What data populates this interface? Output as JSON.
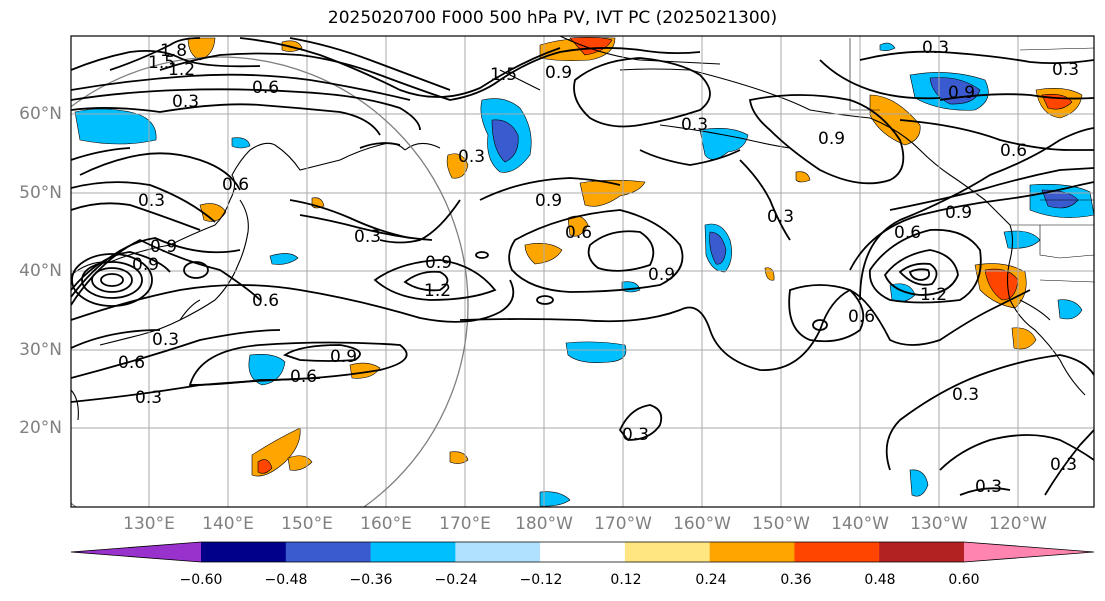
{
  "title": "2025020700 F000 500 hPa PV, IVT PC (2025021300)",
  "lat_labels": [
    "60°N",
    "50°N",
    "40°N",
    "30°N",
    "20°N"
  ],
  "lon_labels": [
    "130°E",
    "140°E",
    "150°E",
    "160°E",
    "170°E",
    "180°W",
    "170°W",
    "160°W",
    "150°W",
    "140°W",
    "130°W",
    "120°W"
  ],
  "colorbar": {
    "colors": [
      "#9932cc",
      "#00008b",
      "#3a5bd0",
      "#00bfff",
      "#b0e2ff",
      "#ffffff",
      "#ffe680",
      "#ffa500",
      "#ff4500",
      "#b22222",
      "#ff85b0"
    ],
    "ticks": [
      "−0.60",
      "−0.48",
      "−0.36",
      "−0.24",
      "−0.12",
      "0.12",
      "0.24",
      "0.36",
      "0.48",
      "0.60"
    ]
  },
  "contour_labels": [
    "1.8",
    "1.5",
    "1.2",
    "0.6",
    "0.3",
    "0.3",
    "0.6",
    "0.9",
    "0.3",
    "0.9",
    "1.2",
    "0.6",
    "0.6",
    "0.9",
    "0.6",
    "0.3",
    "0.9",
    "0.9",
    "0.3",
    "0.3",
    "0.9",
    "0.3",
    "0.9",
    "0.6",
    "0.6",
    "1.2",
    "0.9",
    "0.6",
    "0.3",
    "0.3",
    "0.3",
    "0.3",
    "0.3",
    "0.3",
    "1.5",
    "0.9",
    "0.3",
    "0.9",
    "0.6"
  ]
}
